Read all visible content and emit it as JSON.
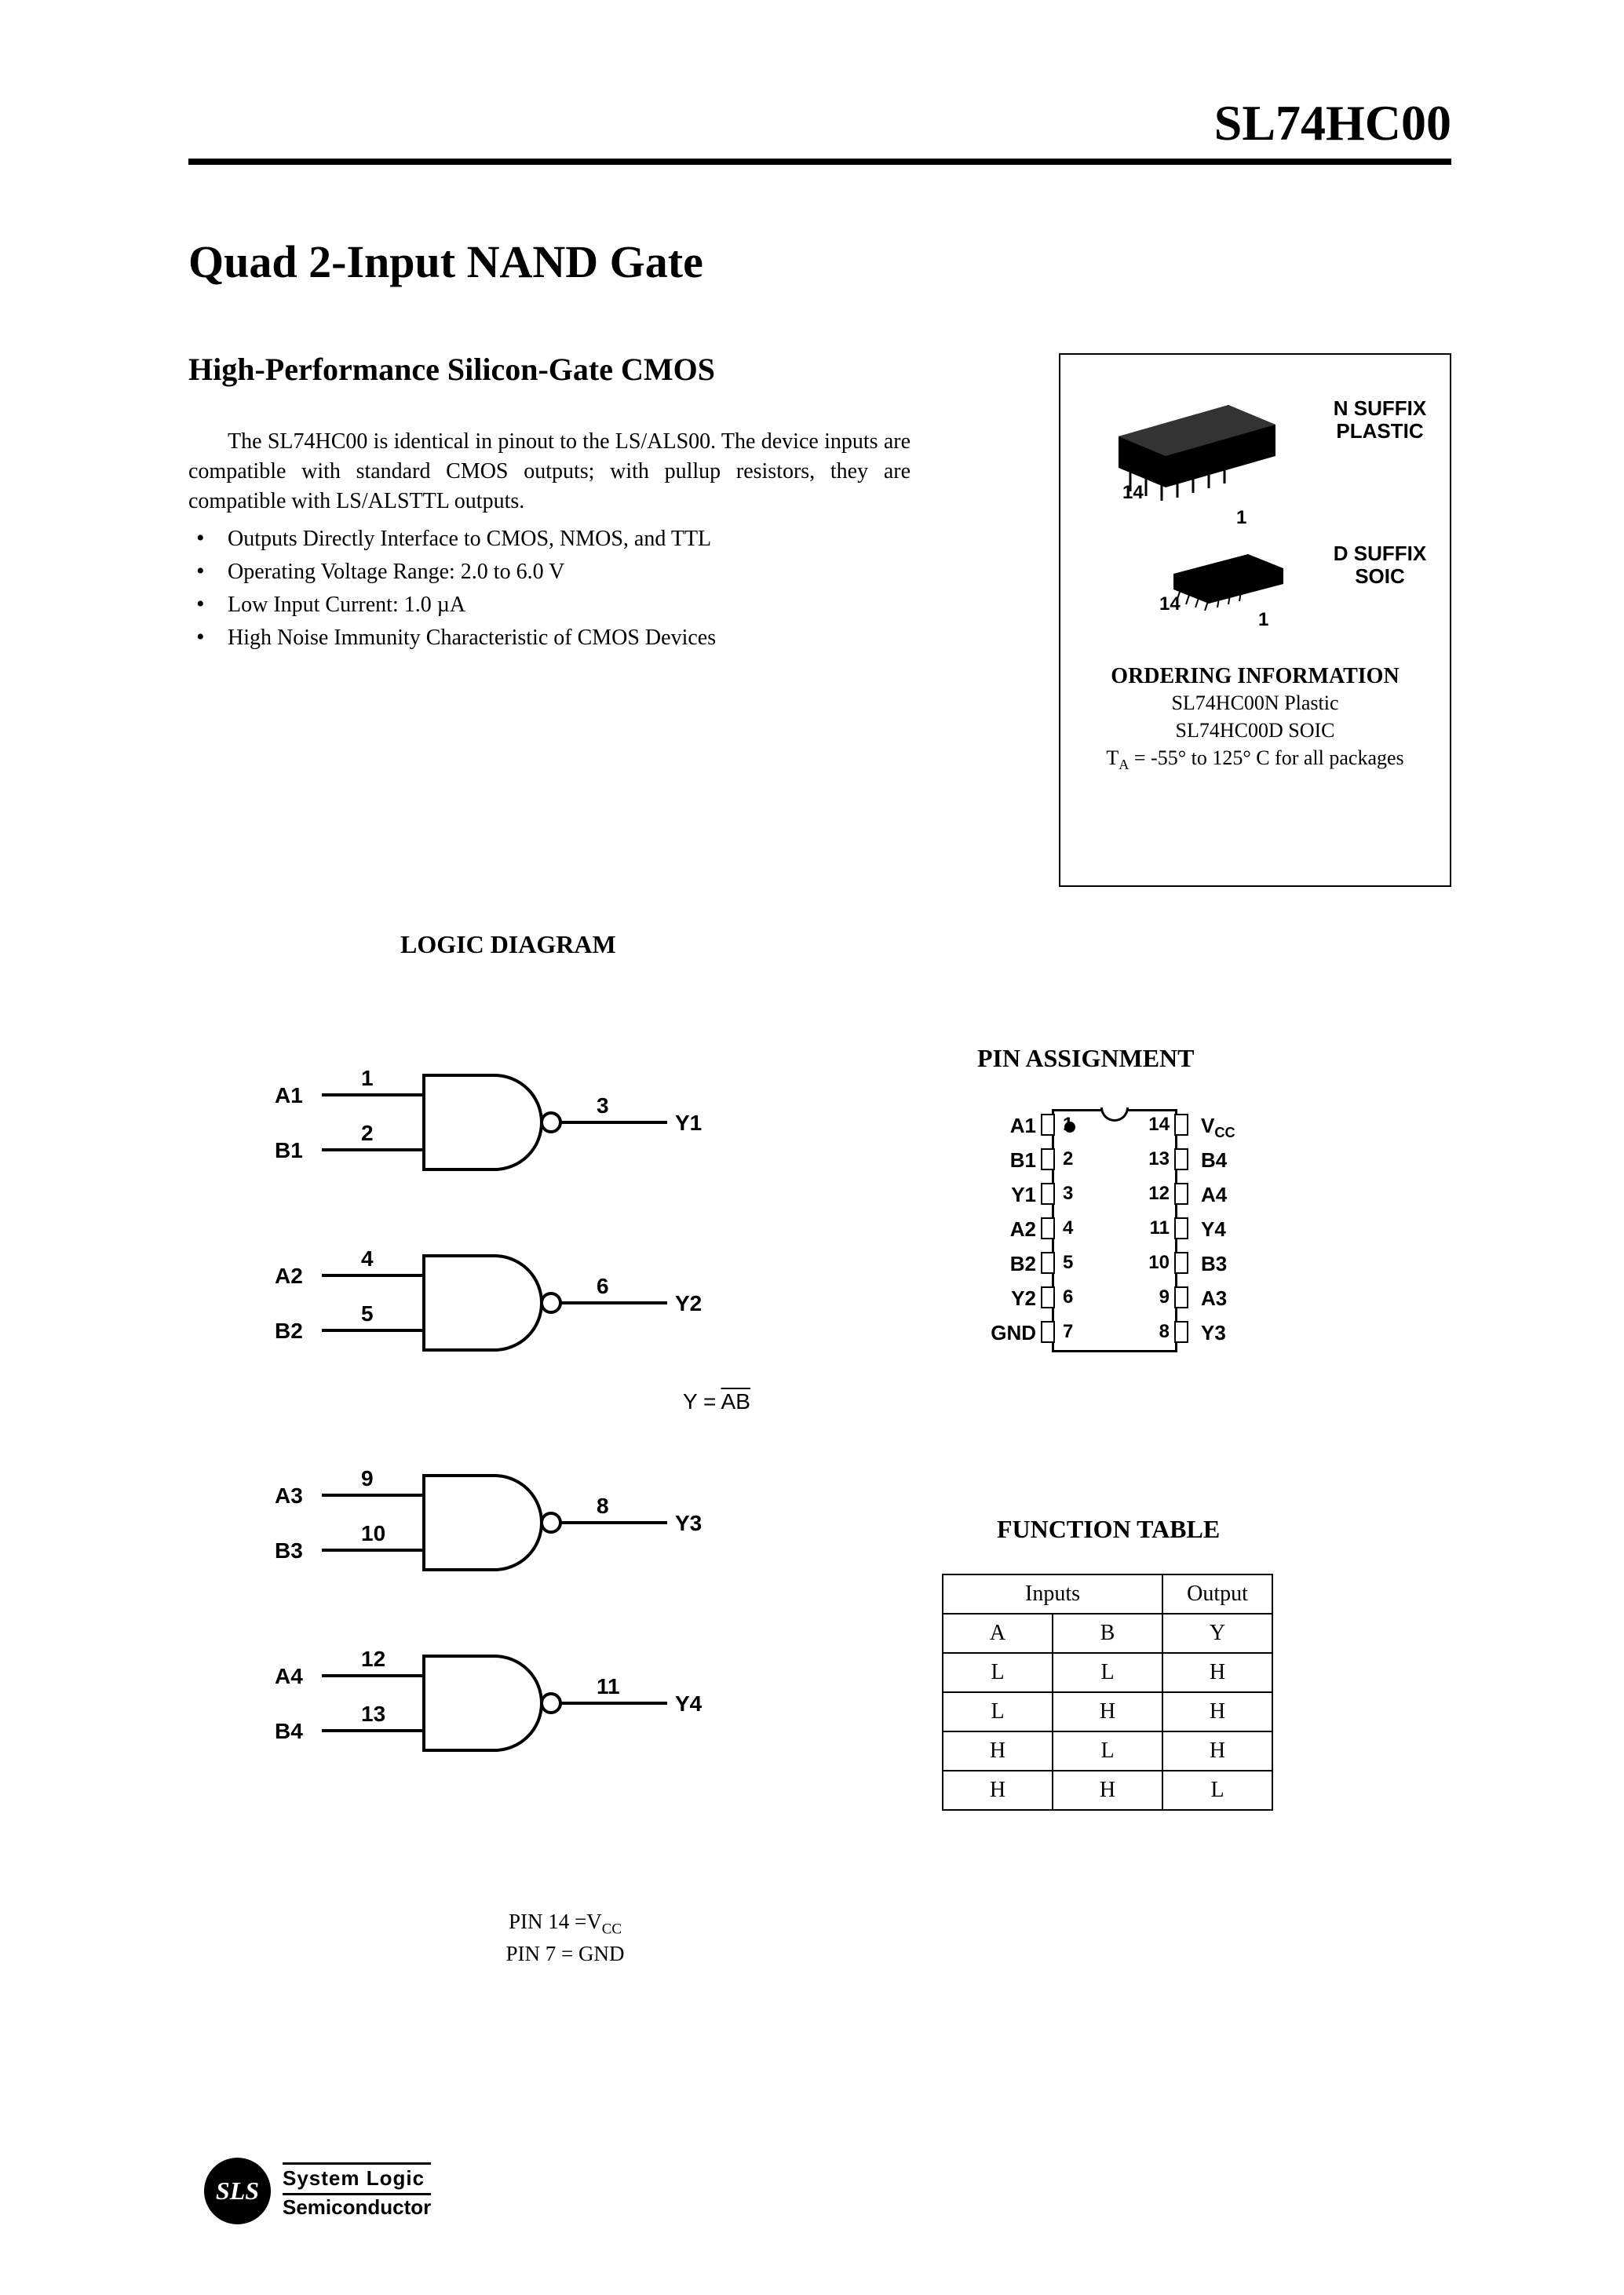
{
  "header": {
    "part_number": "SL74HC00"
  },
  "title": "Quad 2-Input NAND Gate",
  "subtitle": "High-Performance Silicon-Gate CMOS",
  "intro": "The SL74HC00 is identical in pinout to the LS/ALS00. The device inputs are compatible with standard CMOS outputs; with pullup resistors, they are compatible with LS/ALSTTL outputs.",
  "features": [
    "Outputs Directly Interface to CMOS, NMOS, and TTL",
    "Operating Voltage Range: 2.0 to 6.0 V",
    "Low Input Current: 1.0 µA",
    "High Noise Immunity Characteristic of CMOS Devices"
  ],
  "ordering": {
    "pkg_labels": {
      "n": "N SUFFIX\nPLASTIC",
      "d": "D SUFFIX\nSOIC",
      "pin14a": "14",
      "pin1a": "1",
      "pin14b": "14",
      "pin1b": "1"
    },
    "title": "ORDERING INFORMATION",
    "lines": [
      "SL74HC00N Plastic",
      "SL74HC00D SOIC"
    ],
    "temp_prefix": "T",
    "temp_sub": "A",
    "temp_rest": " = -55° to 125° C for all packages"
  },
  "logic": {
    "heading": "LOGIC DIAGRAM",
    "gates": [
      {
        "a": "A1",
        "b": "B1",
        "y": "Y1",
        "pa": "1",
        "pb": "2",
        "py": "3"
      },
      {
        "a": "A2",
        "b": "B2",
        "y": "Y2",
        "pa": "4",
        "pb": "5",
        "py": "6"
      },
      {
        "a": "A3",
        "b": "B3",
        "y": "Y3",
        "pa": "9",
        "pb": "10",
        "py": "8"
      },
      {
        "a": "A4",
        "b": "B4",
        "y": "Y4",
        "pa": "12",
        "pb": "13",
        "py": "11"
      }
    ],
    "eqn_lhs": "Y = ",
    "eqn_rhs": "AB",
    "pin_note_1_pre": "PIN 14 =V",
    "pin_note_1_sub": "CC",
    "pin_note_2": "PIN 7 = GND"
  },
  "pin_assignment": {
    "heading": "PIN ASSIGNMENT",
    "left": [
      {
        "n": "1",
        "l": "A1"
      },
      {
        "n": "2",
        "l": "B1"
      },
      {
        "n": "3",
        "l": "Y1"
      },
      {
        "n": "4",
        "l": "A2"
      },
      {
        "n": "5",
        "l": "B2"
      },
      {
        "n": "6",
        "l": "Y2"
      },
      {
        "n": "7",
        "l": "GND"
      }
    ],
    "right": [
      {
        "n": "14",
        "l": "V",
        "sub": "CC"
      },
      {
        "n": "13",
        "l": "B4"
      },
      {
        "n": "12",
        "l": "A4"
      },
      {
        "n": "11",
        "l": "Y4"
      },
      {
        "n": "10",
        "l": "B3"
      },
      {
        "n": "9",
        "l": "A3"
      },
      {
        "n": "8",
        "l": "Y3"
      }
    ]
  },
  "function_table": {
    "heading": "FUNCTION TABLE",
    "header_inputs": "Inputs",
    "header_output": "Output",
    "cols": [
      "A",
      "B",
      "Y"
    ],
    "rows": [
      [
        "L",
        "L",
        "H"
      ],
      [
        "L",
        "H",
        "H"
      ],
      [
        "H",
        "L",
        "H"
      ],
      [
        "H",
        "H",
        "L"
      ]
    ]
  },
  "footer": {
    "badge": "SLS",
    "line1": "System Logic",
    "line2": "Semiconductor"
  },
  "colors": {
    "fg": "#000000",
    "bg": "#ffffff"
  }
}
